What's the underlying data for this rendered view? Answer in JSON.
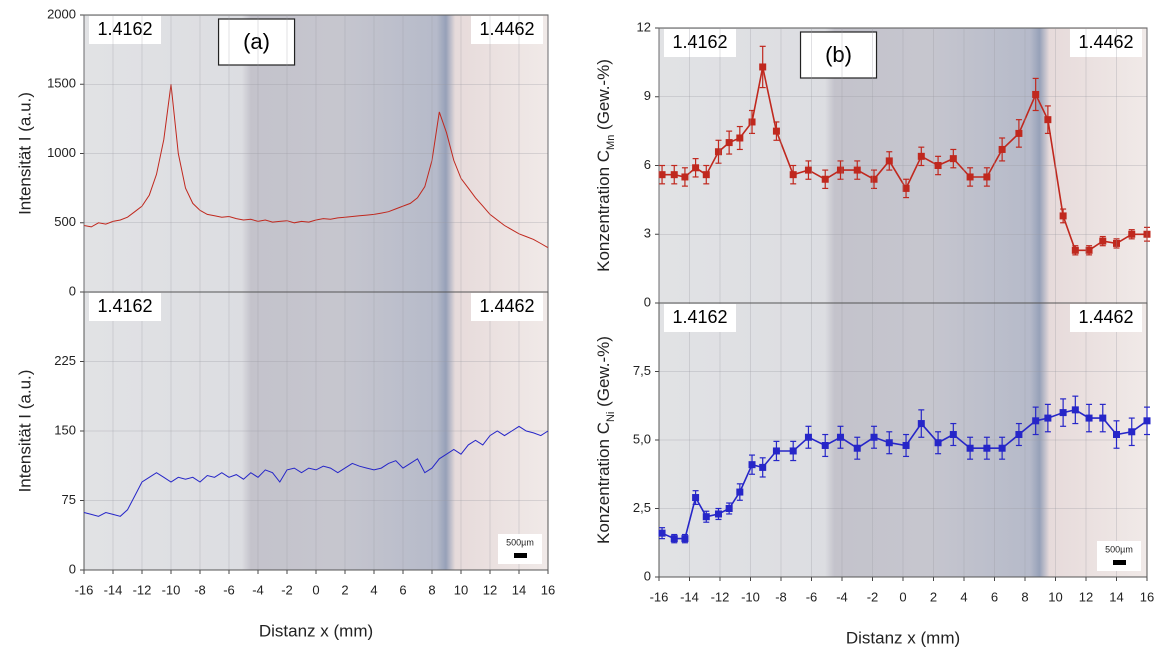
{
  "chart_data": [
    {
      "type": "line",
      "ylabel": "Intensität I (a.u.)",
      "color": "#c0281e",
      "grid": true,
      "labels": [
        "1.4162",
        "1.4462"
      ],
      "panel_label": "(a)",
      "xlim": [
        -16,
        16
      ],
      "ylim": [
        0,
        2000
      ],
      "yticks": [
        0,
        500,
        1000,
        1500,
        2000
      ],
      "x": [
        -16,
        -15.5,
        -15,
        -14.5,
        -14,
        -13.5,
        -13,
        -12.5,
        -12,
        -11.5,
        -11,
        -10.5,
        -10,
        -9.5,
        -9,
        -8.5,
        -8,
        -7.5,
        -7,
        -6.5,
        -6,
        -5.5,
        -5,
        -4.5,
        -4,
        -3.5,
        -3,
        -2.5,
        -2,
        -1.5,
        -1,
        -0.5,
        0,
        0.5,
        1,
        1.5,
        2,
        2.5,
        3,
        3.5,
        4,
        4.5,
        5,
        5.5,
        6,
        6.5,
        7,
        7.5,
        8,
        8.5,
        9,
        9.5,
        10,
        10.5,
        11,
        11.5,
        12,
        12.5,
        13,
        13.5,
        14,
        14.5,
        15,
        15.5,
        16
      ],
      "values": [
        480,
        470,
        500,
        490,
        510,
        520,
        540,
        580,
        620,
        700,
        850,
        1100,
        1500,
        1000,
        750,
        640,
        590,
        560,
        550,
        540,
        545,
        530,
        520,
        525,
        510,
        520,
        505,
        510,
        515,
        500,
        510,
        505,
        520,
        530,
        525,
        535,
        540,
        545,
        550,
        555,
        560,
        570,
        580,
        600,
        620,
        640,
        680,
        760,
        950,
        1300,
        1150,
        950,
        820,
        750,
        680,
        620,
        560,
        520,
        480,
        450,
        420,
        400,
        380,
        350,
        320
      ]
    },
    {
      "type": "line",
      "ylabel": "Intensität I (a.u.)",
      "xlabel": "Distanz x (mm)",
      "color": "#2626c8",
      "grid": true,
      "labels": [
        "1.4162",
        "1.4462"
      ],
      "scale_bar": "500µm",
      "xlim": [
        -16,
        16
      ],
      "xticks": [
        -16,
        -14,
        -12,
        -10,
        -8,
        -6,
        -4,
        -2,
        0,
        2,
        4,
        6,
        8,
        10,
        12,
        14,
        16
      ],
      "ylim": [
        0,
        300
      ],
      "yticks": [
        0,
        75,
        150,
        225
      ],
      "x": [
        -16,
        -15.5,
        -15,
        -14.5,
        -14,
        -13.5,
        -13,
        -12.5,
        -12,
        -11.5,
        -11,
        -10.5,
        -10,
        -9.5,
        -9,
        -8.5,
        -8,
        -7.5,
        -7,
        -6.5,
        -6,
        -5.5,
        -5,
        -4.5,
        -4,
        -3.5,
        -3,
        -2.5,
        -2,
        -1.5,
        -1,
        -0.5,
        0,
        0.5,
        1,
        1.5,
        2,
        2.5,
        3,
        3.5,
        4,
        4.5,
        5,
        5.5,
        6,
        6.5,
        7,
        7.5,
        8,
        8.5,
        9,
        9.5,
        10,
        10.5,
        11,
        11.5,
        12,
        12.5,
        13,
        13.5,
        14,
        14.5,
        15,
        15.5,
        16
      ],
      "values": [
        62,
        60,
        58,
        62,
        60,
        58,
        65,
        80,
        95,
        100,
        105,
        100,
        95,
        100,
        98,
        100,
        95,
        102,
        100,
        105,
        100,
        103,
        98,
        105,
        100,
        108,
        105,
        95,
        108,
        110,
        105,
        110,
        108,
        112,
        110,
        105,
        110,
        115,
        112,
        110,
        108,
        110,
        115,
        118,
        110,
        115,
        120,
        105,
        110,
        120,
        125,
        130,
        125,
        135,
        140,
        135,
        145,
        150,
        145,
        150,
        155,
        150,
        148,
        145,
        150
      ]
    },
    {
      "type": "line",
      "ylabel": [
        "Konzentration C",
        "Mn",
        " (Gew.-%)"
      ],
      "color": "#c0281e",
      "grid": true,
      "markers": true,
      "labels": [
        "1.4162",
        "1.4462"
      ],
      "panel_label": "(b)",
      "xlim": [
        -16,
        16
      ],
      "ylim": [
        0,
        12
      ],
      "yticks": [
        0,
        3,
        6,
        9,
        12
      ],
      "x": [
        -15.8,
        -15,
        -14.3,
        -13.6,
        -12.9,
        -12.1,
        -11.4,
        -10.7,
        -9.9,
        -9.2,
        -8.3,
        -7.2,
        -6.2,
        -5.1,
        -4.1,
        -3,
        -1.9,
        -0.9,
        0.2,
        1.2,
        2.3,
        3.3,
        4.4,
        5.5,
        6.5,
        7.6,
        8.7,
        9.5,
        10.5,
        11.3,
        12.2,
        13.1,
        14,
        15,
        16
      ],
      "values": [
        5.6,
        5.6,
        5.5,
        5.9,
        5.6,
        6.6,
        7.0,
        7.2,
        7.9,
        10.3,
        7.5,
        5.6,
        5.8,
        5.4,
        5.8,
        5.8,
        5.4,
        6.2,
        5.0,
        6.4,
        6.0,
        6.3,
        5.5,
        5.5,
        6.7,
        7.4,
        9.1,
        8.0,
        3.8,
        2.3,
        2.3,
        2.7,
        2.6,
        3.0,
        3.0
      ],
      "errors": [
        0.4,
        0.4,
        0.4,
        0.4,
        0.4,
        0.5,
        0.5,
        0.5,
        0.5,
        0.9,
        0.4,
        0.4,
        0.4,
        0.4,
        0.4,
        0.4,
        0.4,
        0.4,
        0.4,
        0.4,
        0.4,
        0.4,
        0.4,
        0.4,
        0.5,
        0.6,
        0.7,
        0.6,
        0.3,
        0.2,
        0.2,
        0.2,
        0.2,
        0.2,
        0.3
      ]
    },
    {
      "type": "line",
      "ylabel": [
        "Konzentration C",
        "Ni",
        " (Gew.-%)"
      ],
      "xlabel": "Distanz x (mm)",
      "color": "#2626c8",
      "grid": true,
      "markers": true,
      "labels": [
        "1.4162",
        "1.4462"
      ],
      "scale_bar": "500µm",
      "xlim": [
        -16,
        16
      ],
      "xticks": [
        -16,
        -14,
        -12,
        -10,
        -8,
        -6,
        -4,
        -2,
        0,
        2,
        4,
        6,
        8,
        10,
        12,
        14,
        16
      ],
      "ylim": [
        0,
        10
      ],
      "yticks": [
        0,
        {
          "value": 2.5,
          "label": "2,5"
        },
        {
          "value": 5,
          "label": "5,0"
        },
        {
          "value": 7.5,
          "label": "7,5"
        }
      ],
      "x": [
        -15.8,
        -15,
        -14.3,
        -13.6,
        -12.9,
        -12.1,
        -11.4,
        -10.7,
        -9.9,
        -9.2,
        -8.3,
        -7.2,
        -6.2,
        -5.1,
        -4.1,
        -3,
        -1.9,
        -0.9,
        0.2,
        1.2,
        2.3,
        3.3,
        4.4,
        5.5,
        6.5,
        7.6,
        8.7,
        9.5,
        10.5,
        11.3,
        12.2,
        13.1,
        14,
        15,
        16
      ],
      "values": [
        1.6,
        1.4,
        1.4,
        2.9,
        2.2,
        2.3,
        2.5,
        3.1,
        4.1,
        4.0,
        4.6,
        4.6,
        5.1,
        4.8,
        5.1,
        4.7,
        5.1,
        4.9,
        4.8,
        5.6,
        4.9,
        5.2,
        4.7,
        4.7,
        4.7,
        5.2,
        5.7,
        5.8,
        6.0,
        6.1,
        5.8,
        5.8,
        5.2,
        5.3,
        5.7
      ],
      "errors": [
        0.2,
        0.15,
        0.15,
        0.25,
        0.2,
        0.2,
        0.2,
        0.3,
        0.35,
        0.35,
        0.35,
        0.35,
        0.4,
        0.4,
        0.4,
        0.4,
        0.4,
        0.4,
        0.4,
        0.5,
        0.4,
        0.4,
        0.4,
        0.4,
        0.4,
        0.4,
        0.5,
        0.5,
        0.5,
        0.5,
        0.5,
        0.5,
        0.5,
        0.5,
        0.5
      ]
    }
  ]
}
